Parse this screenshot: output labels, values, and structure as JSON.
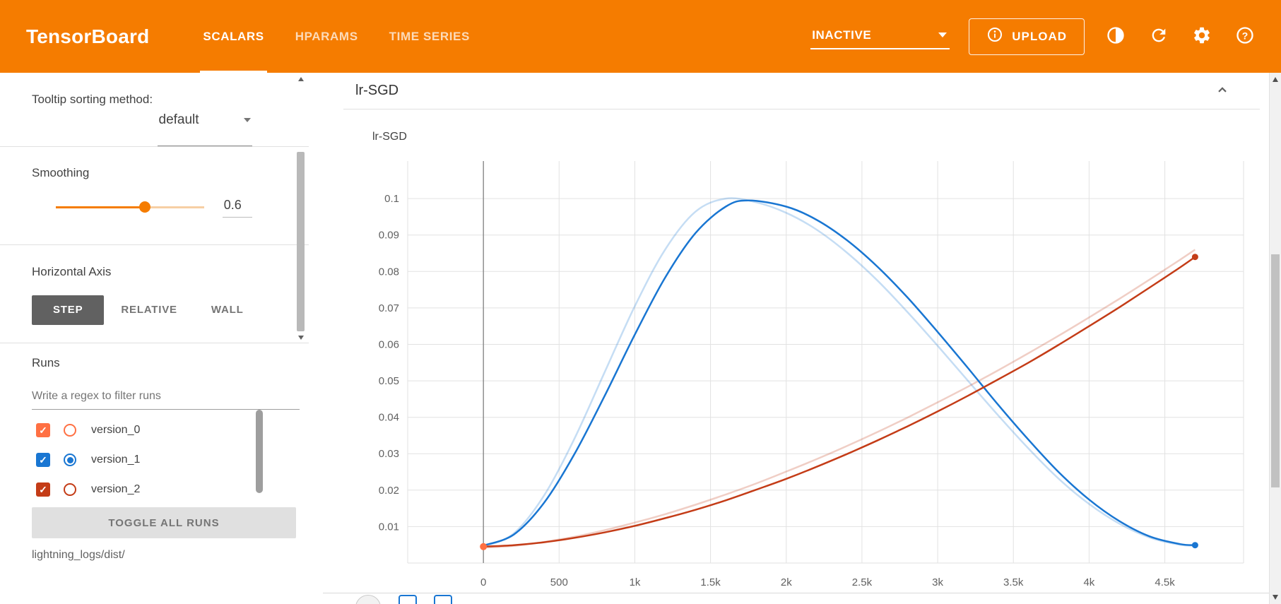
{
  "colors": {
    "header_bg": "#f57c00",
    "step_active_bg": "#616161",
    "grid_line": "#e2e2e2",
    "axis_zero_line": "#8f8f8f"
  },
  "header": {
    "logo": "TensorBoard",
    "tabs": [
      {
        "label": "SCALARS",
        "active": true
      },
      {
        "label": "HPARAMS",
        "active": false
      },
      {
        "label": "TIME SERIES",
        "active": false
      }
    ],
    "status_dropdown": "INACTIVE",
    "upload_label": "UPLOAD"
  },
  "sidebar": {
    "tooltip_sorting": {
      "label": "Tooltip sorting method:",
      "value": "default"
    },
    "smoothing": {
      "label": "Smoothing",
      "value": "0.6",
      "percent": 60
    },
    "horizontal_axis": {
      "label": "Horizontal Axis",
      "options": [
        {
          "label": "STEP",
          "active": true
        },
        {
          "label": "RELATIVE",
          "active": false
        },
        {
          "label": "WALL",
          "active": false
        }
      ]
    },
    "runs": {
      "label": "Runs",
      "filter_placeholder": "Write a regex to filter runs",
      "items": [
        {
          "name": "version_0",
          "color": "#ff7043",
          "checked": true,
          "radio_selected": false
        },
        {
          "name": "version_1",
          "color": "#1976d2",
          "checked": true,
          "radio_selected": true
        },
        {
          "name": "version_2",
          "color": "#c43c17",
          "checked": true,
          "radio_selected": false
        }
      ],
      "toggle_all_label": "TOGGLE ALL RUNS",
      "log_dir": "lightning_logs/dist/"
    }
  },
  "main": {
    "card_title": "lr-SGD"
  },
  "chart_data": {
    "type": "line",
    "title": "lr-SGD",
    "xlabel": "",
    "ylabel": "",
    "grid": true,
    "legend_position": "none",
    "smoothing": 0.6,
    "x_range": [
      -500,
      5020
    ],
    "y_range": [
      0,
      0.1103
    ],
    "zero_line_x": 0,
    "x_ticks": [
      {
        "value": 0,
        "label": "0"
      },
      {
        "value": 500,
        "label": "500"
      },
      {
        "value": 1000,
        "label": "1k"
      },
      {
        "value": 1500,
        "label": "1.5k"
      },
      {
        "value": 2000,
        "label": "2k"
      },
      {
        "value": 2500,
        "label": "2.5k"
      },
      {
        "value": 3000,
        "label": "3k"
      },
      {
        "value": 3500,
        "label": "3.5k"
      },
      {
        "value": 4000,
        "label": "4k"
      },
      {
        "value": 4500,
        "label": "4.5k"
      }
    ],
    "y_ticks": [
      {
        "value": 0.01,
        "label": "0.01"
      },
      {
        "value": 0.02,
        "label": "0.02"
      },
      {
        "value": 0.03,
        "label": "0.03"
      },
      {
        "value": 0.04,
        "label": "0.04"
      },
      {
        "value": 0.05,
        "label": "0.05"
      },
      {
        "value": 0.06,
        "label": "0.06"
      },
      {
        "value": 0.07,
        "label": "0.07"
      },
      {
        "value": 0.08,
        "label": "0.08"
      },
      {
        "value": 0.09,
        "label": "0.09"
      },
      {
        "value": 0.1,
        "label": "0.1"
      }
    ],
    "series": [
      {
        "name": "version_0",
        "color": "#ff7043",
        "points": [
          [
            0,
            0.0045
          ]
        ]
      },
      {
        "name": "version_1",
        "color": "#1976d2",
        "end_dot": true,
        "smoothed": [
          [
            0,
            0.0048
          ],
          [
            200,
            0.0078
          ],
          [
            400,
            0.0165
          ],
          [
            600,
            0.0298
          ],
          [
            800,
            0.0458
          ],
          [
            1000,
            0.0627
          ],
          [
            1200,
            0.0783
          ],
          [
            1400,
            0.0905
          ],
          [
            1600,
            0.0978
          ],
          [
            1750,
            0.0995
          ],
          [
            2000,
            0.0978
          ],
          [
            2200,
            0.0942
          ],
          [
            2400,
            0.0886
          ],
          [
            2600,
            0.0814
          ],
          [
            2800,
            0.0729
          ],
          [
            3000,
            0.0634
          ],
          [
            3200,
            0.0535
          ],
          [
            3400,
            0.0434
          ],
          [
            3600,
            0.0338
          ],
          [
            3800,
            0.0249
          ],
          [
            4000,
            0.0174
          ],
          [
            4200,
            0.0115
          ],
          [
            4400,
            0.0073
          ],
          [
            4600,
            0.0052
          ],
          [
            4700,
            0.0049
          ]
        ],
        "raw": [
          [
            0,
            0.0045
          ],
          [
            200,
            0.0081
          ],
          [
            400,
            0.0185
          ],
          [
            600,
            0.034
          ],
          [
            800,
            0.0523
          ],
          [
            1000,
            0.0705
          ],
          [
            1200,
            0.086
          ],
          [
            1400,
            0.0964
          ],
          [
            1600,
            0.1
          ],
          [
            1800,
            0.099
          ],
          [
            2000,
            0.0961
          ],
          [
            2200,
            0.0915
          ],
          [
            2400,
            0.0852
          ],
          [
            2600,
            0.0776
          ],
          [
            2800,
            0.0689
          ],
          [
            3000,
            0.0596
          ],
          [
            3200,
            0.05
          ],
          [
            3400,
            0.0405
          ],
          [
            3600,
            0.0314
          ],
          [
            3800,
            0.0231
          ],
          [
            4000,
            0.0162
          ],
          [
            4200,
            0.0108
          ],
          [
            4400,
            0.007
          ],
          [
            4600,
            0.005
          ],
          [
            4700,
            0.0048
          ]
        ]
      },
      {
        "name": "version_2",
        "color": "#c43c17",
        "end_dot": true,
        "smoothed": [
          [
            0,
            0.0045
          ],
          [
            200,
            0.0049
          ],
          [
            400,
            0.0057
          ],
          [
            600,
            0.0069
          ],
          [
            800,
            0.0084
          ],
          [
            1000,
            0.0102
          ],
          [
            1200,
            0.0123
          ],
          [
            1400,
            0.0146
          ],
          [
            1600,
            0.0172
          ],
          [
            1800,
            0.0201
          ],
          [
            2000,
            0.0231
          ],
          [
            2200,
            0.0264
          ],
          [
            2400,
            0.0299
          ],
          [
            2600,
            0.0336
          ],
          [
            2800,
            0.0375
          ],
          [
            3000,
            0.0416
          ],
          [
            3200,
            0.0459
          ],
          [
            3400,
            0.0504
          ],
          [
            3600,
            0.055
          ],
          [
            3800,
            0.0599
          ],
          [
            4000,
            0.065
          ],
          [
            4200,
            0.0702
          ],
          [
            4400,
            0.0756
          ],
          [
            4600,
            0.0811
          ],
          [
            4700,
            0.084
          ]
        ],
        "raw": [
          [
            0,
            0.0042
          ],
          [
            200,
            0.0047
          ],
          [
            400,
            0.0058
          ],
          [
            600,
            0.0072
          ],
          [
            800,
            0.009
          ],
          [
            1000,
            0.0111
          ],
          [
            1200,
            0.0134
          ],
          [
            1400,
            0.016
          ],
          [
            1600,
            0.0188
          ],
          [
            1800,
            0.0218
          ],
          [
            2000,
            0.0251
          ],
          [
            2200,
            0.0285
          ],
          [
            2400,
            0.0321
          ],
          [
            2600,
            0.0359
          ],
          [
            2800,
            0.0399
          ],
          [
            3000,
            0.0441
          ],
          [
            3200,
            0.0484
          ],
          [
            3400,
            0.0529
          ],
          [
            3600,
            0.0576
          ],
          [
            3800,
            0.0624
          ],
          [
            4000,
            0.0674
          ],
          [
            4200,
            0.0725
          ],
          [
            4400,
            0.0778
          ],
          [
            4600,
            0.0832
          ],
          [
            4700,
            0.086
          ]
        ]
      }
    ]
  }
}
